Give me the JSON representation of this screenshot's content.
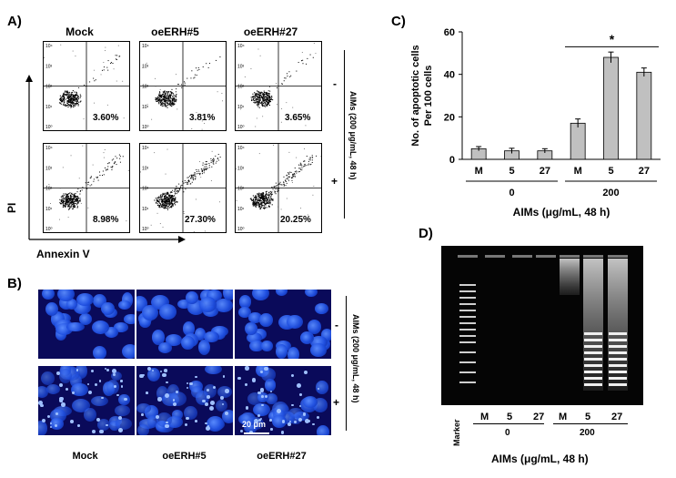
{
  "panel_a": {
    "letter": "A)",
    "titles": [
      "Mock",
      "oeERH#5",
      "oeERH#27"
    ],
    "percentages": [
      [
        "3.60%",
        "3.81%",
        "3.65%"
      ],
      [
        "8.98%",
        "27.30%",
        "20.25%"
      ]
    ],
    "y_axis": "PI",
    "x_axis": "Annexin V",
    "treatment_label": "AIMs (200 μg/mL, 48 h)",
    "row_signs": [
      "-",
      "+"
    ]
  },
  "panel_b": {
    "letter": "B)",
    "captions": [
      "Mock",
      "oeERH#5",
      "oeERH#27"
    ],
    "scale_bar": "20 μm",
    "treatment_label": "AIMs (200 μg/mL, 48 h)",
    "row_signs": [
      "-",
      "+"
    ]
  },
  "panel_c": {
    "letter": "C)",
    "significance": "*",
    "chart_data": {
      "type": "bar",
      "ylabel": "No. of apoptotic cells Per 100 cells",
      "ylabel_lines": [
        "No. of apoptotic cells",
        "Per 100 cells"
      ],
      "xlabel": "AIMs (μg/mL, 48 h)",
      "ylim": [
        0,
        60
      ],
      "yticks": [
        0,
        20,
        40,
        60
      ],
      "categories": [
        "M",
        "5",
        "27",
        "M",
        "5",
        "27"
      ],
      "groups": [
        {
          "label": "0",
          "count": 3
        },
        {
          "label": "200",
          "count": 3
        }
      ],
      "values": [
        5,
        4,
        4,
        17,
        48,
        41
      ],
      "errors": [
        1,
        1.2,
        1,
        2,
        2.5,
        2
      ],
      "bar_color": "#c0c0c0"
    }
  },
  "panel_d": {
    "letter": "D)",
    "marker_label": "Marker",
    "lane_labels": [
      "M",
      "5",
      "27",
      "M",
      "5",
      "27"
    ],
    "group_labels": [
      "0",
      "200"
    ],
    "xlabel": "AIMs (μg/mL, 48 h)"
  },
  "colors": {
    "nucleus": "#1f4fe0",
    "gel_bg": "#050505",
    "band": "#e8e8e8"
  }
}
